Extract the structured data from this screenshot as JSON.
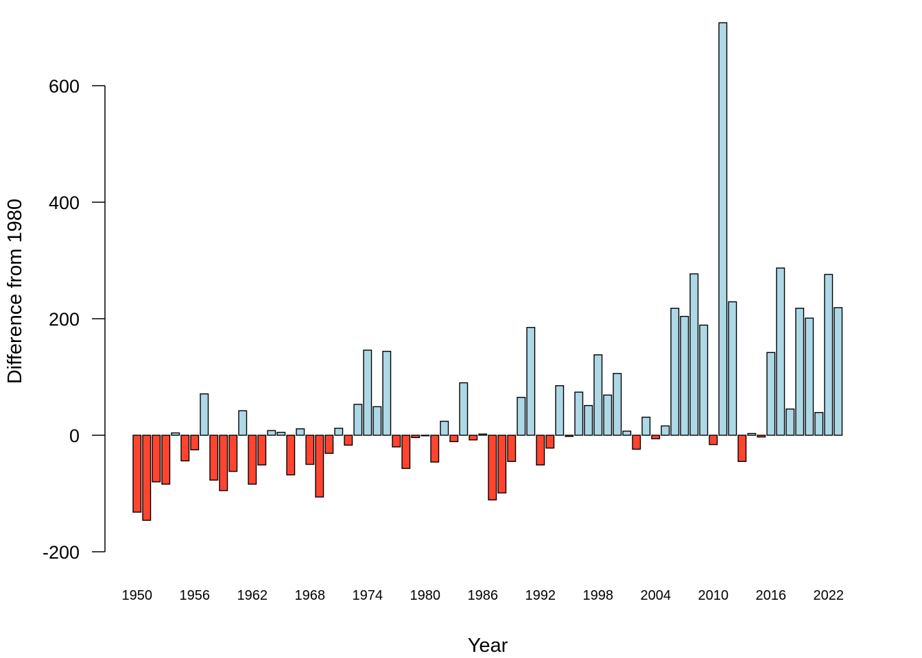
{
  "chart_data": {
    "type": "bar",
    "title": "",
    "xlabel": "Year",
    "ylabel": "Difference from 1980",
    "ylim": [
      -200,
      700
    ],
    "yticks": [
      -200,
      0,
      200,
      400,
      600
    ],
    "xtick_labels": [
      "1950",
      "1956",
      "1962",
      "1968",
      "1974",
      "1980",
      "1986",
      "1992",
      "1998",
      "2004",
      "2010",
      "2016",
      "2022"
    ],
    "grid": false,
    "legend": "none",
    "colors": {
      "positive": "#add8e6",
      "negative": "#ff4530",
      "outline": "#000000"
    },
    "categories": [
      1950,
      1951,
      1952,
      1953,
      1954,
      1955,
      1956,
      1957,
      1958,
      1959,
      1960,
      1961,
      1962,
      1963,
      1964,
      1965,
      1966,
      1967,
      1968,
      1969,
      1970,
      1971,
      1972,
      1973,
      1974,
      1975,
      1976,
      1977,
      1978,
      1979,
      1980,
      1981,
      1982,
      1983,
      1984,
      1985,
      1986,
      1987,
      1988,
      1989,
      1990,
      1991,
      1992,
      1993,
      1994,
      1995,
      1996,
      1997,
      1998,
      1999,
      2000,
      2001,
      2002,
      2003,
      2004,
      2005,
      2006,
      2007,
      2008,
      2009,
      2010,
      2011,
      2012,
      2013,
      2014,
      2015,
      2016,
      2017,
      2018,
      2019,
      2020,
      2021,
      2022,
      2023
    ],
    "values": [
      -132,
      -146,
      -80,
      -84,
      4,
      -44,
      -25,
      71,
      -77,
      -95,
      -62,
      42,
      -84,
      -51,
      8,
      5,
      -68,
      11,
      -50,
      -106,
      -31,
      12,
      -17,
      53,
      146,
      49,
      144,
      -20,
      -57,
      -4,
      0,
      -46,
      24,
      -11,
      90,
      -8,
      2,
      -111,
      -99,
      -45,
      65,
      185,
      -51,
      -22,
      85,
      -2,
      74,
      51,
      138,
      69,
      106,
      7,
      -24,
      31,
      -6,
      16,
      218,
      204,
      277,
      189,
      -16,
      708,
      229,
      -45,
      3,
      -3,
      142,
      287,
      45,
      218,
      201,
      39,
      276,
      219
    ]
  }
}
